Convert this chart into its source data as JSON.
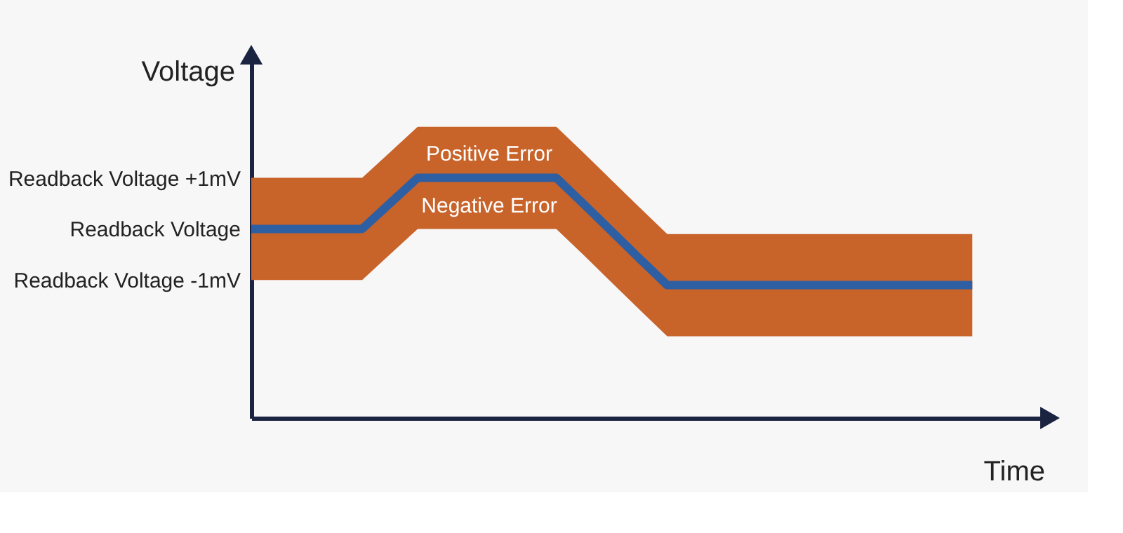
{
  "chart_data": {
    "type": "line",
    "xlabel": "Time",
    "ylabel": "Voltage",
    "categories": [
      null,
      null,
      null,
      null,
      null,
      null,
      null,
      null,
      null,
      null,
      null,
      null,
      null,
      null,
      null,
      null,
      null,
      null,
      null,
      null,
      null,
      null,
      null,
      null,
      null,
      null,
      null
    ],
    "series": [
      {
        "color": "#2e5fa3",
        "values": [
          0,
          0,
          0,
          0,
          0,
          0.5,
          1,
          1,
          1,
          1,
          1,
          1,
          0.48,
          -0.05,
          -0.58,
          -1.1,
          -1.1,
          -1.1,
          -1.1,
          -1.1,
          -1.1,
          -1.1,
          -1.1,
          -1.1,
          -1.1,
          -1.1,
          -1.1
        ],
        "lower": [
          -1,
          -1,
          -1,
          -1,
          -1,
          -0.5,
          0,
          0,
          0,
          0,
          0,
          0,
          -0.52,
          -1.05,
          -1.58,
          -2.1,
          -2.1,
          -2.1,
          -2.1,
          -2.1,
          -2.1,
          -2.1,
          -2.1,
          -2.1,
          -2.1,
          -2.1,
          -2.1
        ],
        "upper": [
          1,
          1,
          1,
          1,
          1,
          1.5,
          2,
          2,
          2,
          2,
          2,
          2,
          1.48,
          0.95,
          0.42,
          -0.1,
          -0.1,
          -0.1,
          -0.1,
          -0.1,
          -0.1,
          -0.1,
          -0.1,
          -0.1,
          -0.1,
          -0.1,
          -0.1
        ]
      }
    ],
    "ylim": [
      -3.7,
      3.3
    ],
    "yticks": [
      {
        "value": -1,
        "label": "Readback Voltage -1mV"
      },
      {
        "value": 0,
        "label": "Readback Voltage"
      },
      {
        "value": 1,
        "label": "Readback Voltage +1mV"
      }
    ],
    "tick_labels": "y",
    "grid": false,
    "marker": "none",
    "line_style": "solid",
    "annotations": [
      "Positive Error",
      "Negative Error"
    ]
  }
}
